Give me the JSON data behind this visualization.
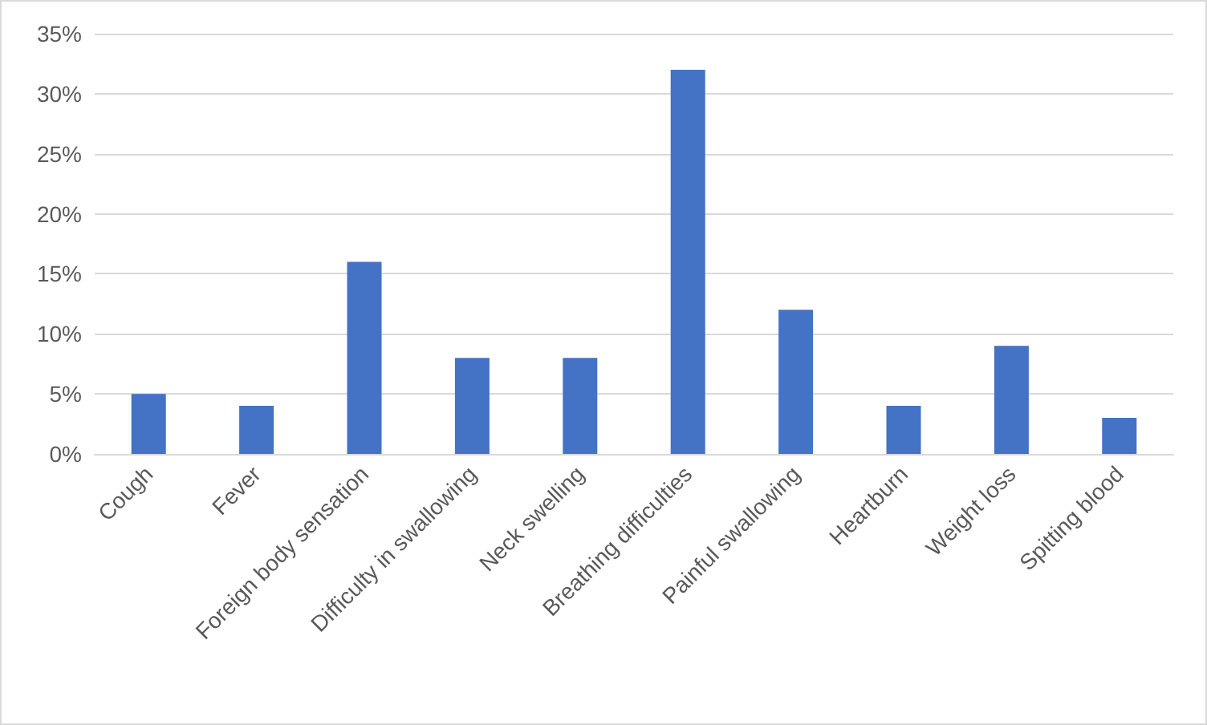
{
  "chart_data": {
    "type": "bar",
    "categories": [
      "Cough",
      "Fever",
      "Foreign body sensation",
      "Difficulty in swallowing",
      "Neck swelling",
      "Breathing difficulties",
      "Painful swallowing",
      "Heartburn",
      "Weight loss",
      "Spitting blood"
    ],
    "values": [
      5,
      4,
      16,
      8,
      8,
      32,
      12,
      4,
      9,
      3
    ],
    "color": "#4472c4",
    "ylim": [
      0,
      35
    ],
    "yticks": [
      {
        "value": 0,
        "label": "0%"
      },
      {
        "value": 5,
        "label": "5%"
      },
      {
        "value": 10,
        "label": "10%"
      },
      {
        "value": 15,
        "label": "15%"
      },
      {
        "value": 20,
        "label": "20%"
      },
      {
        "value": 25,
        "label": "25%"
      },
      {
        "value": 30,
        "label": "30%"
      },
      {
        "value": 35,
        "label": "35%"
      }
    ],
    "grid": "y"
  }
}
